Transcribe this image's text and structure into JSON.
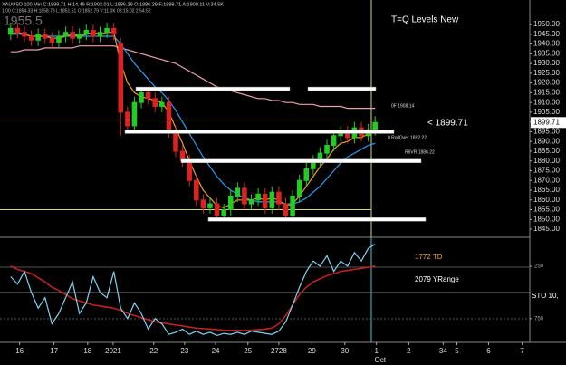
{
  "header": {
    "symbol_line": "XAUUSD 100 Min C:1899.71 H:14.49 R:1902.01 L:1886.29 O:1886.29 F:1899.71 A:1900.11 V:34.5K",
    "sub_line": "1:00 C:1854.33 H:1858.78 L:1851.51 O:1852.79 V:11.0K 03:15:02 2:54:52",
    "big_value": "1955.5",
    "study_title": "T=Q Levels New"
  },
  "chart_data": [
    {
      "type": "candlestick",
      "xlim": [
        0,
        76
      ],
      "ylim": [
        1842,
        1957
      ],
      "xticks": [
        {
          "value": 1.8,
          "label": "16"
        },
        {
          "value": 6.8,
          "label": "17"
        },
        {
          "value": 11.7,
          "label": "18"
        },
        {
          "value": 15.4,
          "label": "2021"
        },
        {
          "value": 21.3,
          "label": "22"
        },
        {
          "value": 25.8,
          "label": "23"
        },
        {
          "value": 30.3,
          "label": "24"
        },
        {
          "value": 35,
          "label": "25"
        },
        {
          "value": 39.5,
          "label": "2728"
        },
        {
          "value": 44.3,
          "label": "29"
        },
        {
          "value": 49.1,
          "label": "30"
        },
        {
          "value": 53.7,
          "label": "1"
        },
        {
          "value": 58.4,
          "label": "2"
        },
        {
          "value": 63.4,
          "label": "34"
        },
        {
          "value": 65.4,
          "label": "5"
        },
        {
          "value": 70,
          "label": "6"
        },
        {
          "value": 74.9,
          "label": "7"
        }
      ],
      "x_sublabel": "Oct",
      "yticks": [
        {
          "value": 1845,
          "label": "1845.00"
        },
        {
          "value": 1850,
          "label": "1850.00"
        },
        {
          "value": 1855,
          "label": "1855.00"
        },
        {
          "value": 1860,
          "label": "1860.00"
        },
        {
          "value": 1865,
          "label": "1865.00"
        },
        {
          "value": 1870,
          "label": "1870.00"
        },
        {
          "value": 1875,
          "label": "1875.00"
        },
        {
          "value": 1880,
          "label": "1880.00"
        },
        {
          "value": 1885,
          "label": "1885.00"
        },
        {
          "value": 1890,
          "label": "1890.00"
        },
        {
          "value": 1895,
          "label": "1895.00"
        },
        {
          "value": 1900,
          "label": "1900.00"
        },
        {
          "value": 1905,
          "label": "1905.00"
        },
        {
          "value": 1910,
          "label": "1910.00"
        },
        {
          "value": 1915,
          "label": "1915.00"
        },
        {
          "value": 1920,
          "label": "1920.00"
        },
        {
          "value": 1925,
          "label": "1925.00"
        },
        {
          "value": 1930,
          "label": "1930.00"
        },
        {
          "value": 1935,
          "label": "1935.00"
        },
        {
          "value": 1940,
          "label": "1940.00"
        },
        {
          "value": 1945,
          "label": "1945.00"
        },
        {
          "value": 1950,
          "label": "1950.00"
        }
      ],
      "up_color": "#22cc22",
      "down_color": "#dd2222",
      "open": [
        1945,
        1948,
        1946,
        1944,
        1942,
        1945,
        1943,
        1941,
        1944,
        1946,
        1943,
        1945,
        1947,
        1944,
        1946,
        1948,
        1940,
        1905,
        1898,
        1910,
        1915,
        1912,
        1908,
        1910,
        1895,
        1885,
        1880,
        1870,
        1860,
        1856,
        1858,
        1852,
        1855,
        1862,
        1866,
        1858,
        1860,
        1863,
        1856,
        1864,
        1858,
        1852,
        1862,
        1870,
        1876,
        1880,
        1884,
        1888,
        1893,
        1895,
        1892,
        1897,
        1893,
        1896
      ],
      "high": [
        1951,
        1951,
        1949,
        1947,
        1948,
        1948,
        1946,
        1947,
        1949,
        1949,
        1948,
        1950,
        1950,
        1949,
        1951,
        1951,
        1943,
        1908,
        1913,
        1918,
        1918,
        1915,
        1913,
        1913,
        1898,
        1888,
        1883,
        1873,
        1863,
        1861,
        1861,
        1858,
        1865,
        1869,
        1869,
        1863,
        1866,
        1866,
        1867,
        1867,
        1861,
        1865,
        1873,
        1879,
        1883,
        1887,
        1891,
        1896,
        1898,
        1898,
        1900,
        1900,
        1899,
        1903
      ],
      "low": [
        1942,
        1943,
        1941,
        1939,
        1939,
        1940,
        1938,
        1938,
        1941,
        1940,
        1940,
        1942,
        1941,
        1941,
        1943,
        1942,
        1893,
        1895,
        1895,
        1907,
        1909,
        1905,
        1905,
        1892,
        1882,
        1877,
        1867,
        1857,
        1853,
        1853,
        1849,
        1849,
        1852,
        1859,
        1855,
        1855,
        1857,
        1853,
        1853,
        1855,
        1849,
        1849,
        1859,
        1867,
        1873,
        1877,
        1881,
        1885,
        1890,
        1889,
        1889,
        1890,
        1890,
        1893
      ],
      "close": [
        1948,
        1946,
        1944,
        1942,
        1945,
        1943,
        1941,
        1944,
        1946,
        1943,
        1945,
        1947,
        1944,
        1946,
        1948,
        1945,
        1905,
        1898,
        1910,
        1915,
        1912,
        1908,
        1910,
        1895,
        1885,
        1880,
        1870,
        1860,
        1856,
        1858,
        1852,
        1855,
        1862,
        1866,
        1858,
        1860,
        1863,
        1856,
        1864,
        1858,
        1852,
        1862,
        1870,
        1876,
        1880,
        1884,
        1888,
        1893,
        1895,
        1892,
        1897,
        1893,
        1896,
        1899.71
      ],
      "lines": [
        {
          "color": "#e8a0b0",
          "values": [
            1936,
            1936,
            1937,
            1937,
            1937,
            1938,
            1938,
            1938,
            1938,
            1938,
            1939,
            1939,
            1939,
            1939,
            1939,
            1939,
            1938,
            1937,
            1936,
            1935,
            1934,
            1933,
            1932,
            1931,
            1930,
            1928,
            1926,
            1924,
            1922,
            1920,
            1918,
            1917,
            1916,
            1915,
            1914,
            1913,
            1912,
            1912,
            1911,
            1911,
            1910,
            1910,
            1909,
            1909,
            1909,
            1908,
            1908,
            1908,
            1908,
            1907,
            1907,
            1907,
            1907,
            1907
          ]
        },
        {
          "color": "#2a9df4",
          "values": [
            1945,
            1945,
            1945,
            1944,
            1944,
            1944,
            1944,
            1944,
            1944,
            1944,
            1944,
            1944,
            1944,
            1944,
            1944,
            1944,
            1940,
            1935,
            1930,
            1926,
            1922,
            1918,
            1915,
            1911,
            1906,
            1900,
            1894,
            1888,
            1882,
            1877,
            1872,
            1868,
            1865,
            1863,
            1861,
            1860,
            1859,
            1859,
            1859,
            1859,
            1858,
            1858,
            1859,
            1861,
            1864,
            1867,
            1871,
            1875,
            1879,
            1882,
            1884,
            1886,
            1888,
            1889
          ]
        },
        {
          "color": "#f0a030",
          "values": [
            1945,
            1946,
            1945,
            1944,
            1944,
            1944,
            1943,
            1943,
            1944,
            1945,
            1944,
            1945,
            1946,
            1945,
            1946,
            1946,
            1930,
            1920,
            1915,
            1913,
            1912,
            1911,
            1910,
            1905,
            1897,
            1889,
            1880,
            1872,
            1865,
            1861,
            1857,
            1856,
            1858,
            1860,
            1860,
            1860,
            1861,
            1860,
            1861,
            1860,
            1857,
            1858,
            1862,
            1867,
            1872,
            1877,
            1881,
            1886,
            1889,
            1890,
            1892,
            1892,
            1894,
            1896
          ]
        }
      ],
      "levels": [
        1917,
        1917,
        1895,
        1880,
        1850
      ],
      "hlines": [
        1901,
        1855
      ],
      "annotations": [
        "< 1899.71",
        "0F 1908.14",
        "0 RollOver 1892.22",
        "R6VR 1886.22"
      ]
    },
    {
      "type": "line",
      "xlim": [
        0,
        76
      ],
      "ylim": [
        950,
        0
      ],
      "yticks": [
        250,
        750
      ],
      "series": [
        {
          "color": "#c0c0c0",
          "values": [
            250,
            280,
            300,
            320,
            360,
            400,
            450,
            480,
            520,
            560,
            580,
            600,
            620,
            630,
            640,
            650,
            670,
            700,
            720,
            740,
            760,
            780,
            790,
            800,
            810,
            820,
            830,
            840,
            845,
            850,
            855,
            860,
            860,
            860,
            860,
            860,
            855,
            850,
            840,
            800,
            720,
            620,
            520,
            450,
            400,
            370,
            340,
            320,
            300,
            290,
            280,
            270,
            260,
            250
          ]
        },
        {
          "color": "#dd1111",
          "values": [
            250,
            280,
            300,
            320,
            360,
            400,
            450,
            480,
            520,
            560,
            580,
            600,
            620,
            630,
            640,
            650,
            670,
            700,
            720,
            740,
            760,
            780,
            790,
            800,
            810,
            820,
            830,
            840,
            845,
            850,
            855,
            860,
            860,
            860,
            860,
            860,
            855,
            850,
            840,
            800,
            720,
            620,
            520,
            450,
            400,
            370,
            340,
            320,
            300,
            290,
            280,
            270,
            260,
            250
          ]
        },
        {
          "color": "#7fd4f0",
          "values": [
            350,
            420,
            300,
            500,
            650,
            550,
            800,
            700,
            550,
            400,
            700,
            600,
            350,
            500,
            550,
            300,
            650,
            750,
            600,
            700,
            850,
            750,
            800,
            900,
            880,
            850,
            900,
            870,
            900,
            880,
            910,
            890,
            900,
            880,
            900,
            870,
            880,
            890,
            900,
            870,
            780,
            620,
            450,
            300,
            200,
            250,
            150,
            300,
            200,
            250,
            120,
            200,
            80,
            40
          ]
        }
      ],
      "annotations": [
        "1772 TD",
        "2079 YRange",
        "STO 10,"
      ]
    }
  ]
}
